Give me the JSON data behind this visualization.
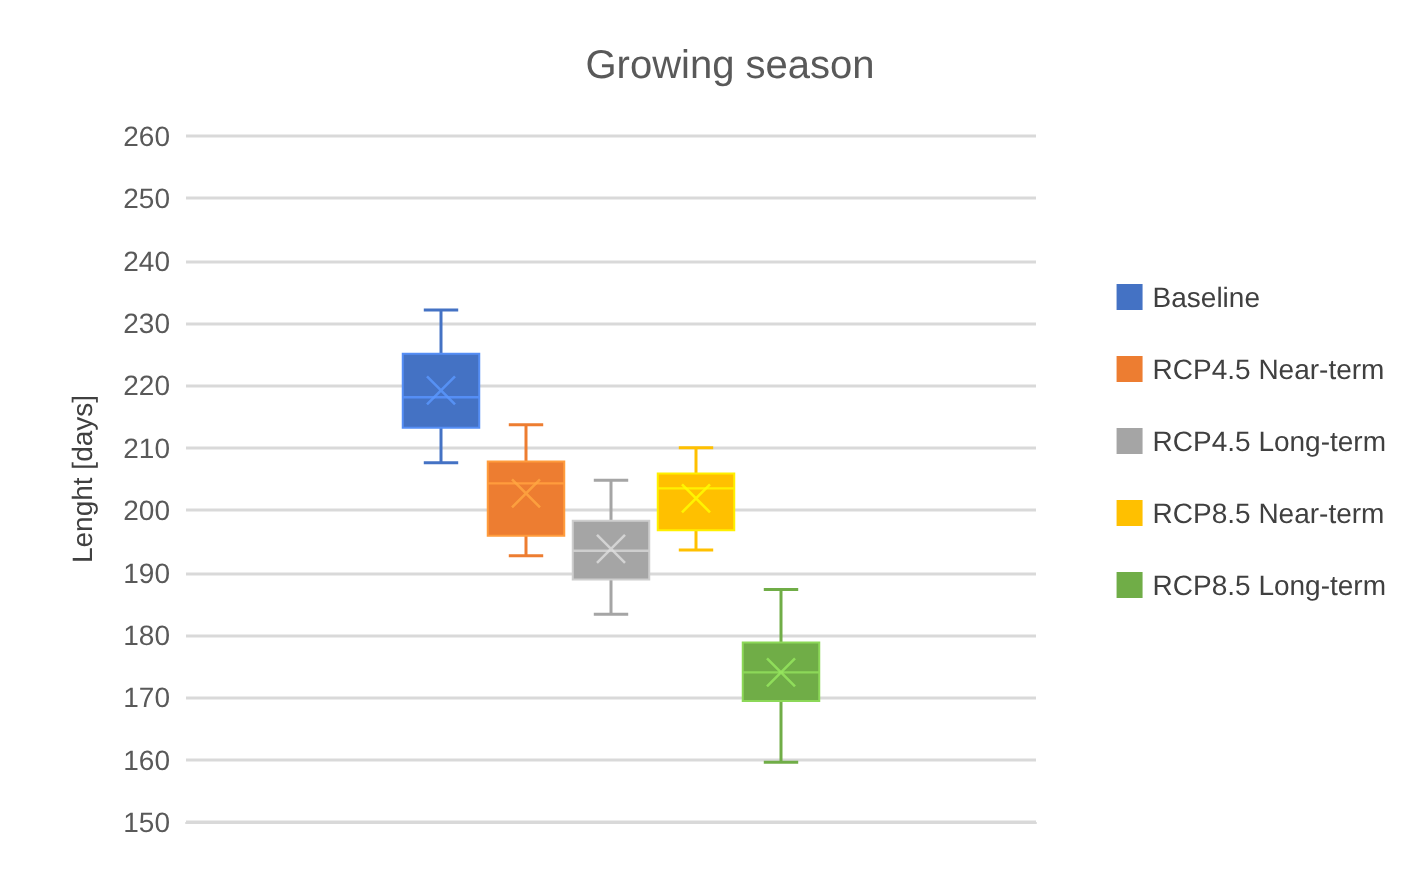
{
  "chart_data": {
    "type": "box",
    "title": "Growing season",
    "ylabel": "Lenght [days]",
    "categories": [
      null
    ],
    "ylim": [
      150,
      260
    ],
    "yticks": [
      150,
      160,
      170,
      180,
      190,
      200,
      210,
      220,
      230,
      240,
      250,
      260
    ],
    "grid": "y",
    "legend": "right",
    "series": [
      {
        "name": "Baseline",
        "color": "#4472c4",
        "boxes": [
          {
            "low": 207.6,
            "q1": 213.2,
            "median": 218.1,
            "q3": 225.1,
            "high": 232.1,
            "mean": 219.2
          }
        ]
      },
      {
        "name": "RCP4.5 Near-term",
        "color": "#ed7d31",
        "boxes": [
          {
            "low": 192.7,
            "q1": 195.9,
            "median": 204.3,
            "q3": 207.8,
            "high": 213.7,
            "mean": 202.7
          }
        ]
      },
      {
        "name": "RCP4.5 Long-term",
        "color": "#a5a5a5",
        "boxes": [
          {
            "low": 183.3,
            "q1": 188.9,
            "median": 193.5,
            "q3": 198.3,
            "high": 204.8,
            "mean": 193.8
          }
        ]
      },
      {
        "name": "RCP8.5 Near-term",
        "color": "#ffc000",
        "boxes": [
          {
            "low": 193.6,
            "q1": 196.8,
            "median": 203.5,
            "q3": 205.9,
            "high": 210.0,
            "mean": 201.9
          }
        ]
      },
      {
        "name": "RCP8.5 Long-term",
        "color": "#70ad47",
        "boxes": [
          {
            "low": 159.6,
            "q1": 169.4,
            "median": 174.0,
            "q3": 178.8,
            "high": 187.3,
            "mean": 174.0
          }
        ]
      }
    ]
  }
}
